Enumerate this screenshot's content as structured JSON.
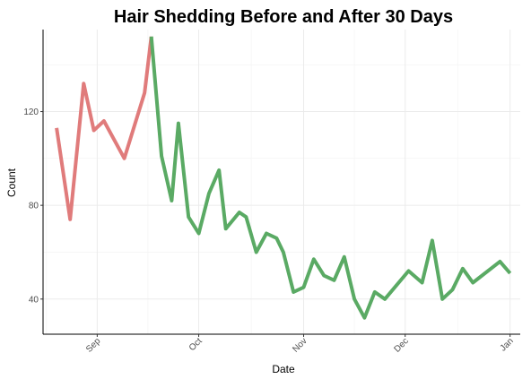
{
  "chart_data": {
    "type": "line",
    "title": "Hair Shedding Before and After 30 Days",
    "xlabel": "Date",
    "ylabel": "Count",
    "x_ticks": [
      "Sep",
      "Oct",
      "Nov",
      "Dec",
      "Jan"
    ],
    "x_tick_dates": [
      "2023-09-01",
      "2023-10-01",
      "2023-11-01",
      "2023-12-01",
      "2024-01-01"
    ],
    "xlim": [
      "2023-08-16",
      "2024-01-04"
    ],
    "y_ticks": [
      "40",
      "80",
      "120"
    ],
    "ylim": [
      25,
      155
    ],
    "grid": true,
    "series": [
      {
        "color": "#e07b7b",
        "points": [
          [
            "2023-08-20",
            113
          ],
          [
            "2023-08-24",
            74
          ],
          [
            "2023-08-28",
            132
          ],
          [
            "2023-08-31",
            112
          ],
          [
            "2023-09-03",
            116
          ],
          [
            "2023-09-09",
            100
          ],
          [
            "2023-09-15",
            128
          ],
          [
            "2023-09-17",
            152
          ]
        ]
      },
      {
        "color": "#5aaa64",
        "points": [
          [
            "2023-09-17",
            152
          ],
          [
            "2023-09-20",
            101
          ],
          [
            "2023-09-23",
            82
          ],
          [
            "2023-09-25",
            115
          ],
          [
            "2023-09-28",
            75
          ],
          [
            "2023-10-01",
            68
          ],
          [
            "2023-10-04",
            85
          ],
          [
            "2023-10-07",
            95
          ],
          [
            "2023-10-09",
            70
          ],
          [
            "2023-10-13",
            77
          ],
          [
            "2023-10-15",
            75
          ],
          [
            "2023-10-18",
            60
          ],
          [
            "2023-10-21",
            68
          ],
          [
            "2023-10-24",
            66
          ],
          [
            "2023-10-26",
            60
          ],
          [
            "2023-10-29",
            43
          ],
          [
            "2023-11-01",
            45
          ],
          [
            "2023-11-04",
            57
          ],
          [
            "2023-11-07",
            50
          ],
          [
            "2023-11-10",
            48
          ],
          [
            "2023-11-13",
            58
          ],
          [
            "2023-11-16",
            40
          ],
          [
            "2023-11-19",
            32
          ],
          [
            "2023-11-22",
            43
          ],
          [
            "2023-11-25",
            40
          ],
          [
            "2023-12-02",
            52
          ],
          [
            "2023-12-06",
            47
          ],
          [
            "2023-12-09",
            65
          ],
          [
            "2023-12-12",
            40
          ],
          [
            "2023-12-15",
            44
          ],
          [
            "2023-12-18",
            53
          ],
          [
            "2023-12-21",
            47
          ],
          [
            "2023-12-29",
            56
          ],
          [
            "2024-01-01",
            51
          ]
        ]
      }
    ]
  }
}
